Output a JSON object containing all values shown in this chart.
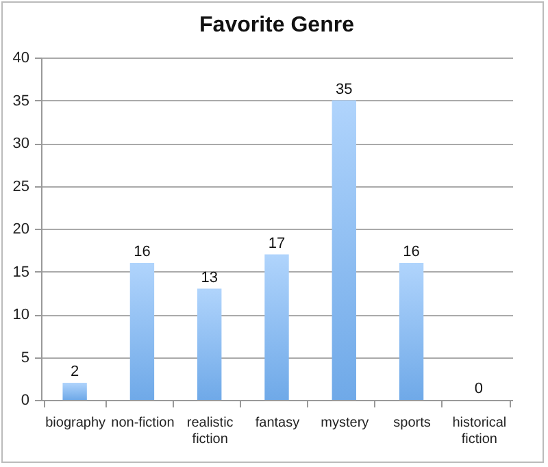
{
  "chart_data": {
    "type": "bar",
    "title": "Favorite Genre",
    "categories": [
      "biography",
      "non-fiction",
      "realistic fiction",
      "fantasy",
      "mystery",
      "sports",
      "historical fiction"
    ],
    "values": [
      2,
      16,
      13,
      17,
      35,
      16,
      0
    ],
    "color": "#6fa9e8",
    "ylim": [
      0,
      40
    ],
    "yticks": [
      0,
      5,
      10,
      15,
      20,
      25,
      30,
      35,
      40
    ],
    "grid": "y",
    "data_labels": true
  }
}
